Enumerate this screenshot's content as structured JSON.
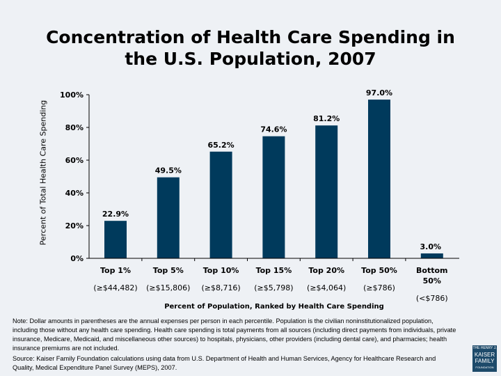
{
  "chart_data": {
    "type": "bar",
    "title": "Concentration of Health Care Spending in the U.S. Population, 2007",
    "xlabel": "Percent of Population, Ranked by Health Care Spending",
    "ylabel": "Percent of Total Health Care Spending",
    "ylim": [
      0,
      100
    ],
    "yticks": [
      "0%",
      "20%",
      "40%",
      "60%",
      "80%",
      "100%"
    ],
    "categories": [
      "Top 1%",
      "Top 5%",
      "Top 10%",
      "Top 15%",
      "Top 20%",
      "Top 50%",
      "Bottom 50%"
    ],
    "sublabels": [
      "(≥$44,482)",
      "(≥$15,806)",
      "(≥$8,716)",
      "(≥$5,798)",
      "(≥$4,064)",
      "(≥$786)",
      "(<$786)"
    ],
    "values": [
      22.9,
      49.5,
      65.2,
      74.6,
      81.2,
      97.0,
      3.0
    ],
    "data_labels": [
      "22.9%",
      "49.5%",
      "65.2%",
      "74.6%",
      "81.2%",
      "97.0%",
      "3.0%"
    ],
    "bar_color": "#003a5c",
    "grid": false
  },
  "note": "Note: Dollar amounts in parentheses are the annual expenses per person in each percentile. Population is the civilian noninstitutionalized population, including those without any health care spending. Health care spending is total payments from all sources (including direct payments from individuals, private insurance, Medicare, Medicaid, and miscellaneous other sources) to hospitals, physicians, other providers (including dental care), and pharmacies; health insurance premiums are not included.",
  "source": "Source: Kaiser Family Foundation calculations using data from U.S. Department of Health and Human Services, Agency for Healthcare Research and Quality, Medical Expenditure Panel Survey (MEPS), 2007.",
  "logo": "THE HENRY J. KAISER FAMILY FOUNDATION"
}
